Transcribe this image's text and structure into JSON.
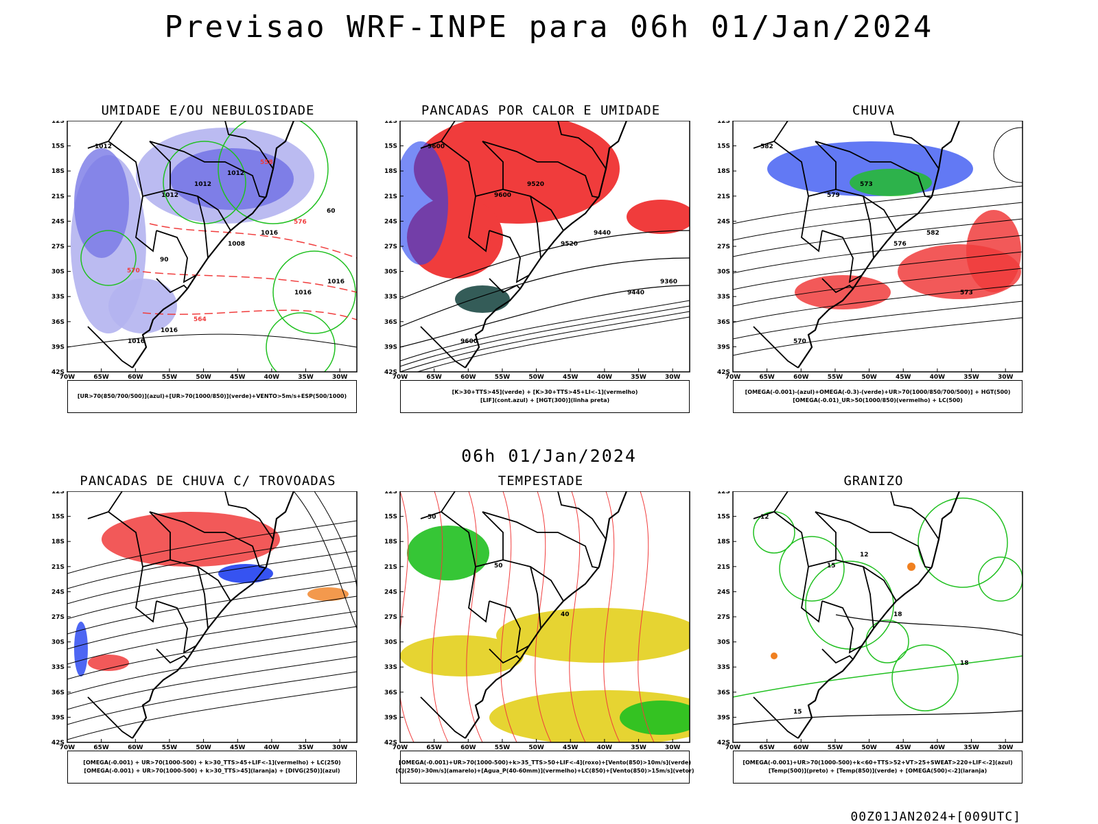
{
  "title": "Previsao WRF-INPE  para 06h 01/Jan/2024",
  "mid_stamp": "06h 01/Jan/2024",
  "run_stamp": "00Z01JAN2024+[009UTC]",
  "axes": {
    "lat_ticks": [
      "12S",
      "15S",
      "18S",
      "21S",
      "24S",
      "27S",
      "30S",
      "33S",
      "36S",
      "39S",
      "42S"
    ],
    "lon_ticks": [
      "70W",
      "65W",
      "60W",
      "55W",
      "50W",
      "45W",
      "40W",
      "35W",
      "30W"
    ]
  },
  "colors": {
    "red": "#f03c3c",
    "green": "#20c020",
    "blue": "#2040f0",
    "lightblue": "#b4b4f0",
    "midblue": "#7878e6",
    "darkgreen": "#1e4a46",
    "yellow": "#e6d432",
    "orange": "#f08020"
  },
  "panels": [
    {
      "title": "UMIDADE E/OU NEBULOSIDADE",
      "legend": [
        "[UR>70(850/700/500)](azul)+[UR>70(1000/850)](verde)+VENTO>5m/s+ESP(500/1000)"
      ],
      "labels": [
        "1012",
        "1012",
        "1008",
        "1016",
        "1016",
        "1012",
        "1016",
        "1016",
        "1016",
        "1012",
        "576",
        "570",
        "564",
        "558",
        "60",
        "90"
      ]
    },
    {
      "title": "PANCADAS POR CALOR E UMIDADE",
      "legend": [
        "[K>30+TTS>45](verde) + [K>30+TTS>45+LI<-1](vermelho)",
        "[LIF](cont.azul) + [HGT(300)](linha preta)"
      ],
      "labels": [
        "9600",
        "9600",
        "9520",
        "9440",
        "9600",
        "9520",
        "9440",
        "9360"
      ]
    },
    {
      "title": "CHUVA",
      "legend": [
        "[OMEGA(-0.001)-(azul)+OMEGA(-0.3)-(verde)+UR>70(1000/850/700/500)] + HGT(500)",
        "[OMEGA(-0.01)_UR>50(1000/850)(vermelho) + LC(500)"
      ],
      "labels": [
        "582",
        "579",
        "576",
        "573",
        "570",
        "573",
        "582"
      ]
    },
    {
      "title": "PANCADAS DE CHUVA C/ TROVOADAS",
      "legend": [
        "[OMEGA(-0.001) + UR>70(1000-500) + k>30_TTS>45+LIF<-1](vermelho) + LC(250)",
        "[OMEGA(-0.001) + UR>70(1000-500) + k>30_TTS>45](laranja) + [DIVG(250)](azul)"
      ],
      "labels": []
    },
    {
      "title": "TEMPESTADE",
      "legend": [
        "[OMEGA(-0.001)+UR>70(1000-500)+k>35_TTS>50+LIF<-4](roxo)+[Vento(850)>10m/s](verde)",
        "[CJ(250)>30m/s](amarelo)+[Agua_P(40-60mm)](vermelho)+LC(850)+[Vento(850)>15m/s](vetor)"
      ],
      "labels": [
        "50",
        "50",
        "40"
      ]
    },
    {
      "title": "GRANIZO",
      "legend": [
        "[OMEGA(-0.001)+UR>70(1000-500)+k<60+TTS>52+VT>25+SWEAT>220+LIF<-2](azul)",
        "[Temp(500)](preto) + [Temp(850)](verde) + [OMEGA(500)<-2](laranja)"
      ],
      "labels": [
        "12",
        "15",
        "18",
        "18",
        "15",
        "12"
      ]
    }
  ]
}
